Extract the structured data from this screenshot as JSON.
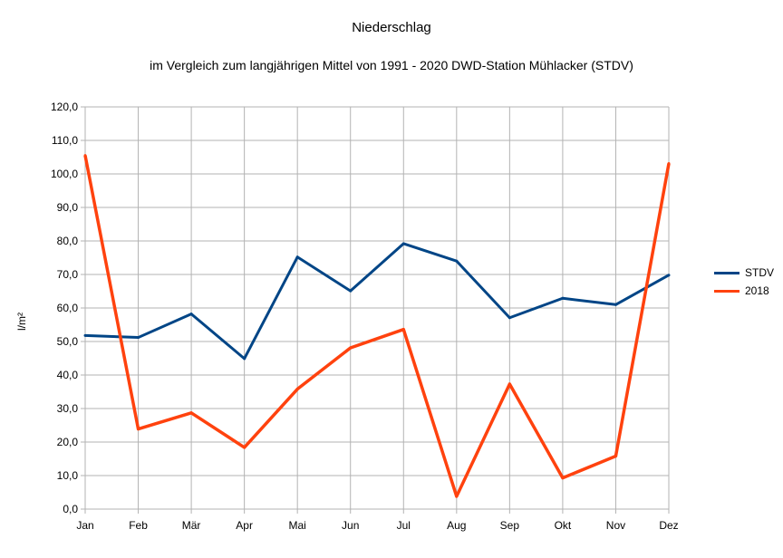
{
  "chart_data": {
    "type": "line",
    "title": "Niederschlag",
    "subtitle": "im Vergleich zum langjährigen Mittel von 1991 - 2020 DWD-Station Mühlacker (STDV)",
    "xlabel": "",
    "ylabel": "l/m²",
    "categories": [
      "Jan",
      "Feb",
      "Mär",
      "Apr",
      "Mai",
      "Jun",
      "Jul",
      "Aug",
      "Sep",
      "Okt",
      "Nov",
      "Dez"
    ],
    "ylim": [
      0,
      120
    ],
    "yticks": [
      "0,0",
      "10,0",
      "20,0",
      "30,0",
      "40,0",
      "50,0",
      "60,0",
      "70,0",
      "80,0",
      "90,0",
      "100,0",
      "110,0",
      "120,0"
    ],
    "grid": true,
    "legend_position": "right",
    "series": [
      {
        "name": "STDV",
        "color": "#004586",
        "values": [
          51.8,
          51.2,
          58.2,
          44.9,
          75.2,
          65.1,
          79.2,
          74.0,
          57.1,
          62.9,
          61.0,
          69.8
        ]
      },
      {
        "name": "2018",
        "color": "#ff420e",
        "values": [
          105.5,
          23.9,
          28.7,
          18.4,
          35.8,
          48.1,
          53.6,
          3.8,
          37.3,
          9.3,
          15.8,
          103.1
        ]
      }
    ]
  }
}
